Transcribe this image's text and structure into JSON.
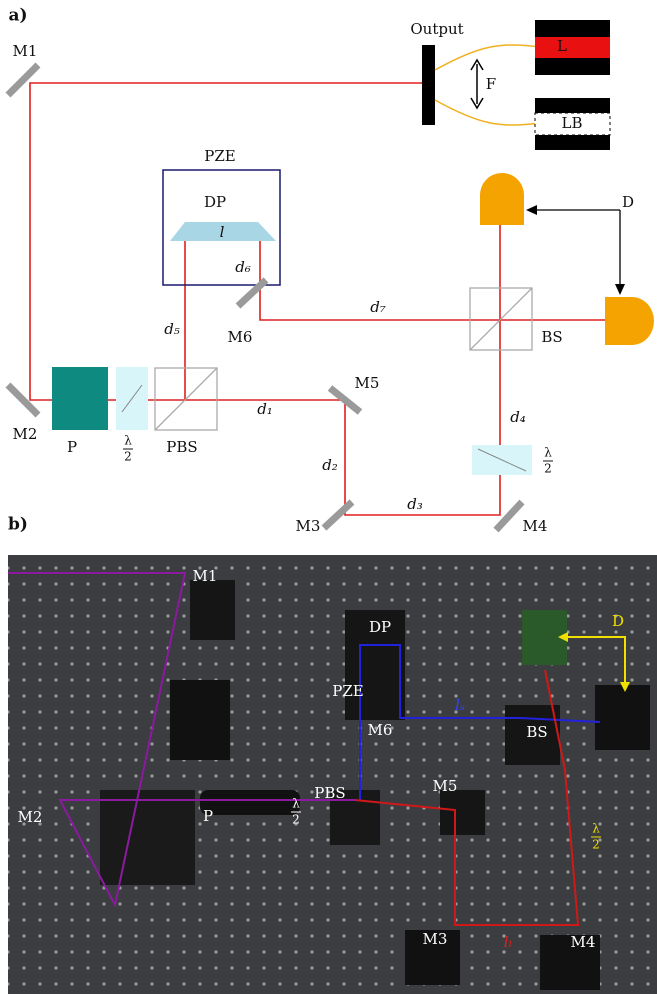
{
  "panel_a": {
    "label": "a)",
    "output": "Output",
    "laser": "L",
    "fiber": "F",
    "light_box": "LB",
    "piezo": "PZE",
    "dove_prism": "DP",
    "prism_length": "l",
    "detector": "D",
    "beam_splitter": "BS",
    "polarizer": "P",
    "pbs": "PBS",
    "half_wave_plates": [
      {
        "num": "λ",
        "den": "2"
      },
      {
        "num": "λ",
        "den": "2"
      }
    ],
    "mirrors": [
      "M1",
      "M2",
      "M3",
      "M4",
      "M5",
      "M6"
    ],
    "distances": [
      "d₁",
      "d₂",
      "d₃",
      "d₄",
      "d₅",
      "d₆",
      "d₇"
    ]
  },
  "panel_b": {
    "label": "b)",
    "mirrors": [
      "M1",
      "M2",
      "M3",
      "M4",
      "M5",
      "M6"
    ],
    "dove_prism": "DP",
    "detector": "D",
    "piezo": "PZE",
    "short_arm": "lₛ",
    "beam_splitter": "BS",
    "polarizer": "P",
    "pbs": "PBS",
    "long_arm": "lₗ",
    "half_wave_plates": [
      {
        "num": "λ",
        "den": "2"
      },
      {
        "num": "λ",
        "den": "2"
      }
    ]
  }
}
